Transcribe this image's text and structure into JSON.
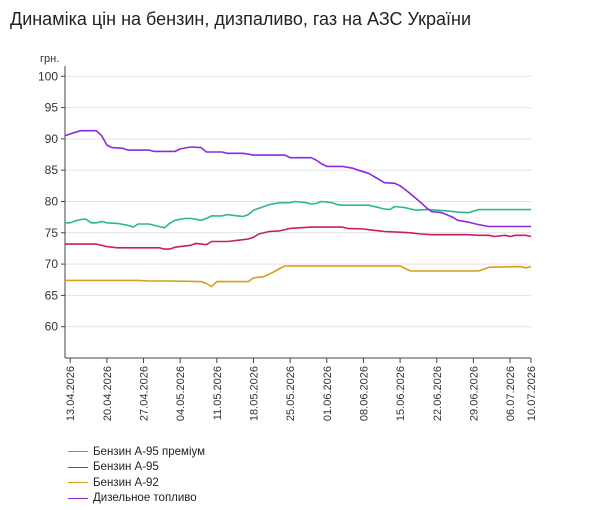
{
  "title": "Динаміка цін на бензин, дизпаливо, газ на АЗС України",
  "chart_data": {
    "type": "line",
    "title": "Динаміка цін на бензин, дизпаливо, газ на АЗС України",
    "ylabel": "грн.",
    "xlabel": "",
    "ylim": [
      55,
      101
    ],
    "yticks": [
      60,
      65,
      70,
      75,
      80,
      85,
      90,
      95,
      100
    ],
    "xrange": [
      "2026-04-12",
      "2026-07-10"
    ],
    "xticks": [
      "13.04.2026",
      "20.04.2026",
      "27.04.2026",
      "04.05.2026",
      "11.05.2026",
      "18.05.2026",
      "25.05.2026",
      "01.06.2026",
      "08.06.2026",
      "15.06.2026",
      "22.06.2026",
      "29.06.2026",
      "06.07.2026",
      "10.07.2026"
    ],
    "grid": "horizontal",
    "legend_position": "bottom-left",
    "series": [
      {
        "name": "Бензин А-95 преміум",
        "color": "#2bb794",
        "points": [
          [
            "2026-04-12",
            76.6
          ],
          [
            "2026-04-13",
            76.6
          ],
          [
            "2026-04-14",
            76.9
          ],
          [
            "2026-04-15",
            77.1
          ],
          [
            "2026-04-16",
            77.2
          ],
          [
            "2026-04-17",
            76.6
          ],
          [
            "2026-04-18",
            76.6
          ],
          [
            "2026-04-19",
            76.8
          ],
          [
            "2026-04-20",
            76.6
          ],
          [
            "2026-04-22",
            76.5
          ],
          [
            "2026-04-24",
            76.2
          ],
          [
            "2026-04-25",
            75.9
          ],
          [
            "2026-04-26",
            76.4
          ],
          [
            "2026-04-28",
            76.4
          ],
          [
            "2026-04-30",
            76.0
          ],
          [
            "2026-05-01",
            75.8
          ],
          [
            "2026-05-02",
            76.5
          ],
          [
            "2026-05-03",
            77.0
          ],
          [
            "2026-05-05",
            77.3
          ],
          [
            "2026-05-06",
            77.3
          ],
          [
            "2026-05-08",
            77.0
          ],
          [
            "2026-05-09",
            77.3
          ],
          [
            "2026-05-10",
            77.7
          ],
          [
            "2026-05-12",
            77.7
          ],
          [
            "2026-05-13",
            77.9
          ],
          [
            "2026-05-15",
            77.7
          ],
          [
            "2026-05-16",
            77.6
          ],
          [
            "2026-05-17",
            77.9
          ],
          [
            "2026-05-18",
            78.6
          ],
          [
            "2026-05-20",
            79.2
          ],
          [
            "2026-05-21",
            79.5
          ],
          [
            "2026-05-23",
            79.8
          ],
          [
            "2026-05-25",
            79.8
          ],
          [
            "2026-05-26",
            80.0
          ],
          [
            "2026-05-28",
            79.8
          ],
          [
            "2026-05-29",
            79.6
          ],
          [
            "2026-05-30",
            79.7
          ],
          [
            "2026-05-31",
            80.0
          ],
          [
            "2026-06-02",
            79.8
          ],
          [
            "2026-06-03",
            79.5
          ],
          [
            "2026-06-04",
            79.4
          ],
          [
            "2026-06-09",
            79.4
          ],
          [
            "2026-06-11",
            79.0
          ],
          [
            "2026-06-12",
            78.8
          ],
          [
            "2026-06-13",
            78.7
          ],
          [
            "2026-06-14",
            79.2
          ],
          [
            "2026-06-16",
            79.0
          ],
          [
            "2026-06-17",
            78.8
          ],
          [
            "2026-06-18",
            78.6
          ],
          [
            "2026-06-20",
            78.7
          ],
          [
            "2026-06-22",
            78.6
          ],
          [
            "2026-06-24",
            78.5
          ],
          [
            "2026-06-26",
            78.3
          ],
          [
            "2026-06-28",
            78.2
          ],
          [
            "2026-06-30",
            78.7
          ],
          [
            "2026-07-02",
            78.7
          ],
          [
            "2026-07-10",
            78.7
          ]
        ]
      },
      {
        "name": "Бензин А-95",
        "color": "#c81e64",
        "points": [
          [
            "2026-04-12",
            73.2
          ],
          [
            "2026-04-18",
            73.2
          ],
          [
            "2026-04-19",
            73.0
          ],
          [
            "2026-04-20",
            72.8
          ],
          [
            "2026-04-22",
            72.6
          ],
          [
            "2026-04-30",
            72.6
          ],
          [
            "2026-05-01",
            72.4
          ],
          [
            "2026-05-02",
            72.4
          ],
          [
            "2026-05-03",
            72.7
          ],
          [
            "2026-05-06",
            73.0
          ],
          [
            "2026-05-07",
            73.3
          ],
          [
            "2026-05-09",
            73.1
          ],
          [
            "2026-05-10",
            73.6
          ],
          [
            "2026-05-13",
            73.6
          ],
          [
            "2026-05-15",
            73.8
          ],
          [
            "2026-05-17",
            74.0
          ],
          [
            "2026-05-18",
            74.3
          ],
          [
            "2026-05-19",
            74.8
          ],
          [
            "2026-05-21",
            75.2
          ],
          [
            "2026-05-23",
            75.3
          ],
          [
            "2026-05-25",
            75.7
          ],
          [
            "2026-05-29",
            75.9
          ],
          [
            "2026-06-04",
            75.9
          ],
          [
            "2026-06-05",
            75.7
          ],
          [
            "2026-06-08",
            75.6
          ],
          [
            "2026-06-10",
            75.4
          ],
          [
            "2026-06-12",
            75.2
          ],
          [
            "2026-06-15",
            75.1
          ],
          [
            "2026-06-17",
            75.0
          ],
          [
            "2026-06-19",
            74.8
          ],
          [
            "2026-06-21",
            74.7
          ],
          [
            "2026-06-28",
            74.7
          ],
          [
            "2026-06-30",
            74.6
          ],
          [
            "2026-07-02",
            74.6
          ],
          [
            "2026-07-03",
            74.4
          ],
          [
            "2026-07-05",
            74.6
          ],
          [
            "2026-07-06",
            74.4
          ],
          [
            "2026-07-07",
            74.6
          ],
          [
            "2026-07-09",
            74.6
          ],
          [
            "2026-07-10",
            74.4
          ]
        ]
      },
      {
        "name": "Бензин А-92",
        "color": "#d4a018",
        "points": [
          [
            "2026-04-12",
            67.4
          ],
          [
            "2026-04-26",
            67.4
          ],
          [
            "2026-04-28",
            67.3
          ],
          [
            "2026-05-02",
            67.3
          ],
          [
            "2026-05-08",
            67.2
          ],
          [
            "2026-05-09",
            66.9
          ],
          [
            "2026-05-10",
            66.4
          ],
          [
            "2026-05-11",
            67.2
          ],
          [
            "2026-05-17",
            67.2
          ],
          [
            "2026-05-18",
            67.8
          ],
          [
            "2026-05-20",
            68.0
          ],
          [
            "2026-05-22",
            68.8
          ],
          [
            "2026-05-23",
            69.3
          ],
          [
            "2026-05-24",
            69.7
          ],
          [
            "2026-06-15",
            69.7
          ],
          [
            "2026-06-16",
            69.3
          ],
          [
            "2026-06-17",
            68.9
          ],
          [
            "2026-06-30",
            68.9
          ],
          [
            "2026-07-02",
            69.5
          ],
          [
            "2026-07-08",
            69.6
          ],
          [
            "2026-07-09",
            69.4
          ],
          [
            "2026-07-10",
            69.6
          ]
        ]
      },
      {
        "name": "Дизельное топливо",
        "color": "#8a2be2",
        "points": [
          [
            "2026-04-12",
            90.5
          ],
          [
            "2026-04-13",
            90.8
          ],
          [
            "2026-04-15",
            91.3
          ],
          [
            "2026-04-18",
            91.3
          ],
          [
            "2026-04-19",
            90.5
          ],
          [
            "2026-04-20",
            89.0
          ],
          [
            "2026-04-21",
            88.6
          ],
          [
            "2026-04-23",
            88.5
          ],
          [
            "2026-04-24",
            88.2
          ],
          [
            "2026-04-28",
            88.2
          ],
          [
            "2026-04-29",
            88.0
          ],
          [
            "2026-05-03",
            88.0
          ],
          [
            "2026-05-04",
            88.4
          ],
          [
            "2026-05-06",
            88.7
          ],
          [
            "2026-05-08",
            88.6
          ],
          [
            "2026-05-09",
            87.9
          ],
          [
            "2026-05-12",
            87.9
          ],
          [
            "2026-05-13",
            87.7
          ],
          [
            "2026-05-16",
            87.7
          ],
          [
            "2026-05-18",
            87.4
          ],
          [
            "2026-05-24",
            87.4
          ],
          [
            "2026-05-25",
            87.0
          ],
          [
            "2026-05-29",
            87.0
          ],
          [
            "2026-05-30",
            86.6
          ],
          [
            "2026-05-31",
            86.0
          ],
          [
            "2026-06-01",
            85.6
          ],
          [
            "2026-06-04",
            85.6
          ],
          [
            "2026-06-06",
            85.3
          ],
          [
            "2026-06-07",
            85.0
          ],
          [
            "2026-06-09",
            84.5
          ],
          [
            "2026-06-10",
            84.0
          ],
          [
            "2026-06-11",
            83.5
          ],
          [
            "2026-06-12",
            83.0
          ],
          [
            "2026-06-14",
            82.9
          ],
          [
            "2026-06-15",
            82.5
          ],
          [
            "2026-06-16",
            81.9
          ],
          [
            "2026-06-17",
            81.2
          ],
          [
            "2026-06-18",
            80.5
          ],
          [
            "2026-06-19",
            79.8
          ],
          [
            "2026-06-20",
            79.0
          ],
          [
            "2026-06-21",
            78.4
          ],
          [
            "2026-06-23",
            78.2
          ],
          [
            "2026-06-25",
            77.5
          ],
          [
            "2026-06-26",
            77.0
          ],
          [
            "2026-06-28",
            76.7
          ],
          [
            "2026-06-30",
            76.3
          ],
          [
            "2026-07-02",
            76.0
          ],
          [
            "2026-07-10",
            76.0
          ]
        ]
      }
    ]
  }
}
